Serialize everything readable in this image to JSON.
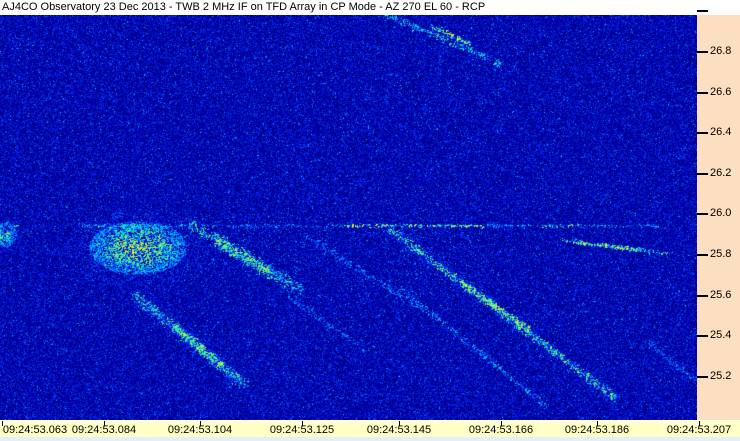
{
  "header": {
    "title": "AJ4CO Observatory 23 Dec 2013 - TWB 2 MHz IF on TFD Array in CP Mode - AZ 270 EL 60 - RCP"
  },
  "chart_data": {
    "type": "heatmap",
    "subtype": "radio-spectrogram",
    "title": "AJ4CO Observatory 23 Dec 2013 - TWB 2 MHz IF on TFD Array in CP Mode - AZ 270 EL 60 - RCP",
    "title_parts": {
      "station": "AJ4CO Observatory",
      "date": "23 Dec 2013",
      "receiver": "TWB 2 MHz IF",
      "antenna": "TFD Array in CP Mode",
      "pointing": "AZ 270 EL 60",
      "polarization": "RCP"
    },
    "x_axis": {
      "ticks": [
        {
          "t": 63,
          "label": "09:24:53.063"
        },
        {
          "t": 84,
          "label": "09:24:53.084"
        },
        {
          "t": 104,
          "label": "09:24:53.104"
        },
        {
          "t": 125,
          "label": "09:24:53.125"
        },
        {
          "t": 145,
          "label": "09:24:53.145"
        },
        {
          "t": 166,
          "label": "09:24:53.166"
        },
        {
          "t": 186,
          "label": "09:24:53.186"
        },
        {
          "t": 207,
          "label": "09:24:53.207"
        }
      ]
    },
    "y_axis": {
      "ticks": [
        {
          "f": 27.0,
          "label": ""
        },
        {
          "f": 26.8,
          "label": "26.8"
        },
        {
          "f": 26.6,
          "label": "26.6"
        },
        {
          "f": 26.4,
          "label": "26.4"
        },
        {
          "f": 26.2,
          "label": "26.2"
        },
        {
          "f": 26.0,
          "label": "26.0"
        },
        {
          "f": 25.8,
          "label": "25.8"
        },
        {
          "f": 25.6,
          "label": "25.6"
        },
        {
          "f": 25.4,
          "label": "25.4"
        },
        {
          "f": 25.2,
          "label": "25.2"
        }
      ]
    },
    "colors": {
      "title_bg": "#ffffff",
      "freq_axis_bg": "#fcdec0",
      "time_axis_bg": "#ffffc6",
      "footer_bg": "#e6eefa",
      "tick_color": "#000000",
      "text_color": "#000000",
      "noise_palette": [
        "#00006e",
        "#0000b9",
        "#0a37fa",
        "#0082ff",
        "#00d2eb",
        "#3cfa8c",
        "#a5e646",
        "#ebeb2d"
      ]
    },
    "features": [
      {
        "name": "burst-left-edge",
        "kind": "blob",
        "center": {
          "t": 64,
          "f": 25.9
        },
        "radius_t": 2.5,
        "radius_f": 0.06,
        "strength": 0.6
      },
      {
        "name": "fixed-frequency-line",
        "kind": "band",
        "f": 25.944,
        "width": 3,
        "segments": [
          {
            "t0": 63,
            "t1": 67,
            "strength": 0.45
          },
          {
            "t0": 80,
            "t1": 101,
            "strength": 0.5
          },
          {
            "t0": 101,
            "t1": 134,
            "strength": 0.22
          },
          {
            "t0": 134,
            "t1": 163,
            "strength": 0.85
          },
          {
            "t0": 163,
            "t1": 175,
            "strength": 0.3
          },
          {
            "t0": 175,
            "t1": 183,
            "strength": 0.6
          },
          {
            "t0": 183,
            "t1": 199,
            "strength": 0.28
          }
        ]
      },
      {
        "name": "s-burst-top-right",
        "kind": "streak",
        "from": {
          "t": 142.5,
          "f": 26.99
        },
        "to": {
          "t": 166.5,
          "f": 26.74
        },
        "width": 7,
        "strength": 0.45,
        "core": {
          "from": {
            "t": 152,
            "f": 26.93
          },
          "to": {
            "t": 160,
            "f": 26.84
          },
          "strength": 0.8
        }
      },
      {
        "name": "burst-blob",
        "kind": "blob",
        "center": {
          "t": 91.5,
          "f": 25.835
        },
        "radius_t": 10,
        "radius_f": 0.13,
        "strength": 0.9
      },
      {
        "name": "s-burst-2",
        "kind": "streak",
        "from": {
          "t": 102,
          "f": 25.96
        },
        "to": {
          "t": 125.5,
          "f": 25.62
        },
        "width": 13,
        "strength": 0.5,
        "core": {
          "from": {
            "t": 107.5,
            "f": 25.87
          },
          "to": {
            "t": 118.5,
            "f": 25.72
          },
          "strength": 0.75
        }
      },
      {
        "name": "s-burst-3-faint",
        "kind": "streak",
        "from": {
          "t": 126,
          "f": 25.9
        },
        "to": {
          "t": 150,
          "f": 25.53
        },
        "width": 8,
        "strength": 0.17
      },
      {
        "name": "s-burst-main",
        "kind": "streak",
        "from": {
          "t": 143.3,
          "f": 25.93
        },
        "to": {
          "t": 190.5,
          "f": 25.09
        },
        "width": 8,
        "strength": 0.62,
        "haze": 16,
        "core": {
          "from": {
            "t": 158,
            "f": 25.67
          },
          "to": {
            "t": 172.5,
            "f": 25.43
          },
          "strength": 0.85
        }
      },
      {
        "name": "s-burst-parallel",
        "kind": "streak",
        "from": {
          "t": 145.5,
          "f": 25.64
        },
        "to": {
          "t": 176,
          "f": 25.05
        },
        "width": 6,
        "strength": 0.3
      },
      {
        "name": "s-burst-lower-left",
        "kind": "streak",
        "from": {
          "t": 90.5,
          "f": 25.61
        },
        "to": {
          "t": 114,
          "f": 25.15
        },
        "width": 11,
        "strength": 0.5,
        "haze": 18,
        "core": {
          "from": {
            "t": 99,
            "f": 25.45
          },
          "to": {
            "t": 109,
            "f": 25.25
          },
          "strength": 0.78
        }
      },
      {
        "name": "s-burst-mid-faint",
        "kind": "streak",
        "from": {
          "t": 122.5,
          "f": 25.6
        },
        "to": {
          "t": 139,
          "f": 25.32
        },
        "width": 7,
        "strength": 0.15
      },
      {
        "name": "slow-drift-line",
        "kind": "streak",
        "from": {
          "t": 179,
          "f": 25.875
        },
        "to": {
          "t": 201,
          "f": 25.805
        },
        "width": 4,
        "strength": 0.55,
        "core": {
          "from": {
            "t": 181.5,
            "f": 25.865
          },
          "to": {
            "t": 196,
            "f": 25.825
          },
          "strength": 0.85
        }
      },
      {
        "name": "s-burst-bottom-right",
        "kind": "streak",
        "from": {
          "t": 196.5,
          "f": 25.38
        },
        "to": {
          "t": 207,
          "f": 25.17
        },
        "width": 7,
        "strength": 0.17
      },
      {
        "name": "scatter-left",
        "kind": "scatter",
        "t0": 80,
        "t1": 131,
        "f0": 25.7,
        "f1": 25.99,
        "strength": 0.35,
        "density": 0.02
      },
      {
        "name": "scatter-main-upper",
        "kind": "scatter",
        "t0": 143,
        "t1": 163,
        "f0": 25.6,
        "f1": 25.93,
        "strength": 0.3,
        "density": 0.025
      }
    ]
  }
}
